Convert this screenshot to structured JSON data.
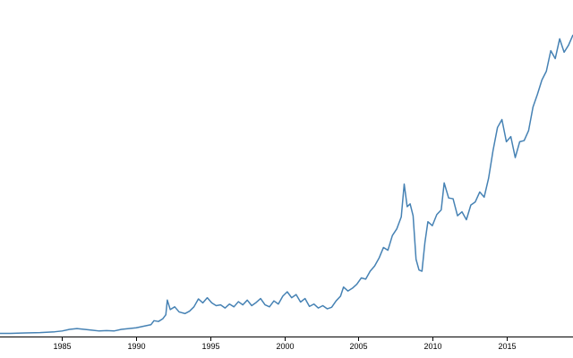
{
  "chart_data": {
    "type": "line",
    "title": "",
    "xlabel": "",
    "ylabel": "",
    "xlim": [
      1980.8,
      2019.5
    ],
    "ylim": [
      0,
      850
    ],
    "grid": false,
    "line_color": "#4682b4",
    "x_ticks": [
      "1985",
      "1990",
      "1995",
      "2000",
      "2005",
      "2010",
      "2015"
    ],
    "series": [
      {
        "points": [
          [
            1980.8,
            8
          ],
          [
            1981.5,
            8
          ],
          [
            1982.5,
            9
          ],
          [
            1983.5,
            10
          ],
          [
            1984.5,
            12
          ],
          [
            1985.0,
            14
          ],
          [
            1985.5,
            18
          ],
          [
            1986.0,
            20
          ],
          [
            1986.5,
            18
          ],
          [
            1987.0,
            16
          ],
          [
            1987.5,
            14
          ],
          [
            1988.0,
            15
          ],
          [
            1988.5,
            14
          ],
          [
            1989.0,
            18
          ],
          [
            1989.5,
            20
          ],
          [
            1990.0,
            22
          ],
          [
            1990.5,
            26
          ],
          [
            1991.0,
            30
          ],
          [
            1991.2,
            40
          ],
          [
            1991.5,
            38
          ],
          [
            1991.8,
            45
          ],
          [
            1992.0,
            55
          ],
          [
            1992.1,
            92
          ],
          [
            1992.3,
            68
          ],
          [
            1992.6,
            75
          ],
          [
            1992.9,
            62
          ],
          [
            1993.3,
            58
          ],
          [
            1993.6,
            64
          ],
          [
            1993.9,
            75
          ],
          [
            1994.2,
            95
          ],
          [
            1994.5,
            85
          ],
          [
            1994.8,
            98
          ],
          [
            1995.1,
            85
          ],
          [
            1995.4,
            78
          ],
          [
            1995.7,
            80
          ],
          [
            1996.0,
            72
          ],
          [
            1996.3,
            82
          ],
          [
            1996.6,
            75
          ],
          [
            1996.9,
            88
          ],
          [
            1997.2,
            80
          ],
          [
            1997.5,
            92
          ],
          [
            1997.8,
            78
          ],
          [
            1998.1,
            86
          ],
          [
            1998.4,
            96
          ],
          [
            1998.7,
            80
          ],
          [
            1999.0,
            75
          ],
          [
            1999.3,
            90
          ],
          [
            1999.6,
            82
          ],
          [
            1999.9,
            102
          ],
          [
            2000.2,
            113
          ],
          [
            2000.5,
            98
          ],
          [
            2000.8,
            106
          ],
          [
            2001.1,
            87
          ],
          [
            2001.4,
            96
          ],
          [
            2001.7,
            76
          ],
          [
            2002.0,
            82
          ],
          [
            2002.3,
            72
          ],
          [
            2002.6,
            78
          ],
          [
            2002.9,
            70
          ],
          [
            2003.2,
            74
          ],
          [
            2003.5,
            90
          ],
          [
            2003.8,
            102
          ],
          [
            2004.0,
            125
          ],
          [
            2004.3,
            115
          ],
          [
            2004.6,
            122
          ],
          [
            2004.9,
            132
          ],
          [
            2005.2,
            148
          ],
          [
            2005.5,
            145
          ],
          [
            2005.8,
            165
          ],
          [
            2006.1,
            178
          ],
          [
            2006.4,
            198
          ],
          [
            2006.7,
            225
          ],
          [
            2007.0,
            218
          ],
          [
            2007.3,
            255
          ],
          [
            2007.6,
            272
          ],
          [
            2007.9,
            302
          ],
          [
            2008.1,
            385
          ],
          [
            2008.3,
            328
          ],
          [
            2008.5,
            335
          ],
          [
            2008.7,
            305
          ],
          [
            2008.9,
            195
          ],
          [
            2009.1,
            168
          ],
          [
            2009.3,
            165
          ],
          [
            2009.5,
            238
          ],
          [
            2009.7,
            290
          ],
          [
            2010.0,
            280
          ],
          [
            2010.3,
            308
          ],
          [
            2010.6,
            320
          ],
          [
            2010.8,
            388
          ],
          [
            2011.1,
            350
          ],
          [
            2011.4,
            348
          ],
          [
            2011.7,
            305
          ],
          [
            2012.0,
            315
          ],
          [
            2012.3,
            295
          ],
          [
            2012.6,
            332
          ],
          [
            2012.9,
            340
          ],
          [
            2013.2,
            365
          ],
          [
            2013.5,
            352
          ],
          [
            2013.8,
            400
          ],
          [
            2014.1,
            470
          ],
          [
            2014.4,
            528
          ],
          [
            2014.7,
            548
          ],
          [
            2015.0,
            492
          ],
          [
            2015.3,
            505
          ],
          [
            2015.6,
            452
          ],
          [
            2015.9,
            492
          ],
          [
            2016.2,
            495
          ],
          [
            2016.5,
            520
          ],
          [
            2016.8,
            580
          ],
          [
            2017.1,
            612
          ],
          [
            2017.4,
            648
          ],
          [
            2017.7,
            670
          ],
          [
            2018.0,
            722
          ],
          [
            2018.3,
            702
          ],
          [
            2018.6,
            752
          ],
          [
            2018.9,
            718
          ],
          [
            2019.2,
            736
          ],
          [
            2019.5,
            762
          ]
        ]
      }
    ]
  }
}
